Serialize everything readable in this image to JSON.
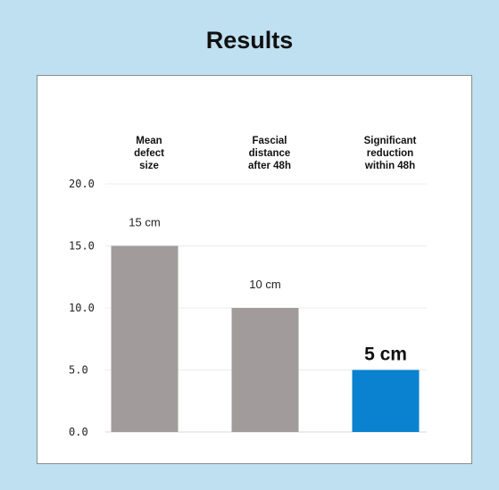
{
  "title": "Results",
  "colors": {
    "background": "#bfe0f1",
    "bar": "#a19c9b",
    "highlight": "#0a82cf"
  },
  "chart_data": {
    "type": "bar",
    "title": "Results",
    "categories": [
      [
        "Mean",
        "defect",
        "size"
      ],
      [
        "Fascial",
        "distance",
        "after 48h"
      ],
      [
        "Significant",
        "reduction",
        "within 48h"
      ]
    ],
    "values": [
      15,
      10,
      5
    ],
    "data_labels": [
      "15 cm",
      "10 cm",
      "5 cm"
    ],
    "highlight_index": 2,
    "yticks": [
      "0.0",
      "5.0",
      "10.0",
      "15.0",
      "20.0"
    ],
    "ylim": [
      0,
      20
    ],
    "grid": true,
    "xlabel": "",
    "ylabel": ""
  }
}
